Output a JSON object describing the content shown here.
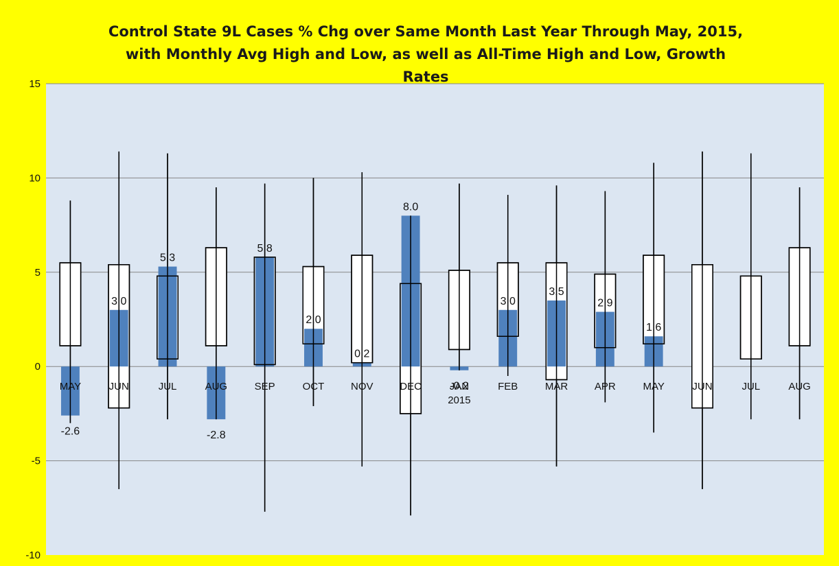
{
  "chart_data": {
    "type": "bar",
    "title_lines": [
      "Control State 9L Cases % Chg over Same Month Last Year Through May, 2015,",
      "with Monthly Avg High and Low, as well as All-Time High and Low,  Growth",
      "Rates"
    ],
    "xlabel": "",
    "ylabel": "",
    "ylim": [
      -10,
      15
    ],
    "yticks": [
      -10,
      -5,
      0,
      5,
      10,
      15
    ],
    "grid": true,
    "legend": "none",
    "categories": [
      [
        "MAY"
      ],
      [
        "JUN"
      ],
      [
        "JUL"
      ],
      [
        "AUG"
      ],
      [
        "SEP"
      ],
      [
        "OCT"
      ],
      [
        "NOV"
      ],
      [
        "DEC"
      ],
      [
        "JAN",
        "2015"
      ],
      [
        "FEB"
      ],
      [
        "MAR"
      ],
      [
        "APR"
      ],
      [
        "MAY"
      ],
      [
        "JUN"
      ],
      [
        "JUL"
      ],
      [
        "AUG"
      ]
    ],
    "series": [
      {
        "kind": "bar",
        "values": [
          -2.6,
          3.0,
          5.3,
          -2.8,
          5.8,
          2.0,
          0.2,
          8.0,
          -0.2,
          3.0,
          3.5,
          2.9,
          1.6,
          null,
          null,
          null
        ],
        "data_labels": [
          "-2.6",
          "3.0",
          "5.3",
          "-2.8",
          "5.8",
          "2.0",
          "0.2",
          "8.0",
          "-0.2",
          "3.0",
          "3.5",
          "2.9",
          "1.6",
          "",
          "",
          ""
        ]
      },
      {
        "kind": "avg_range_box",
        "high": [
          5.5,
          5.4,
          4.8,
          6.3,
          5.8,
          5.3,
          5.9,
          4.4,
          5.1,
          5.5,
          5.5,
          4.9,
          5.9,
          5.4,
          4.8,
          6.3
        ],
        "low": [
          1.1,
          -2.2,
          0.4,
          1.1,
          0.1,
          1.2,
          0.2,
          -2.5,
          0.9,
          1.6,
          -0.7,
          1.0,
          1.2,
          -2.2,
          0.4,
          1.1
        ]
      },
      {
        "kind": "all_time_range_line",
        "high": [
          8.8,
          11.4,
          11.3,
          9.5,
          9.7,
          10.0,
          10.3,
          8.0,
          9.7,
          9.1,
          9.6,
          9.3,
          10.8,
          11.4,
          11.3,
          9.5
        ],
        "low": [
          -3.0,
          -6.5,
          -2.8,
          -2.8,
          -7.7,
          -2.1,
          -5.3,
          -7.9,
          -0.2,
          -0.5,
          -5.3,
          -1.9,
          -3.5,
          -6.5,
          -2.8,
          -2.8
        ]
      }
    ],
    "colors": {
      "background": "#ffff00",
      "plot_area": "#dce6f2",
      "bar": "#4f81bd",
      "box_fill": "#ffffff",
      "gridline": "#868686",
      "text": "#111111"
    }
  }
}
